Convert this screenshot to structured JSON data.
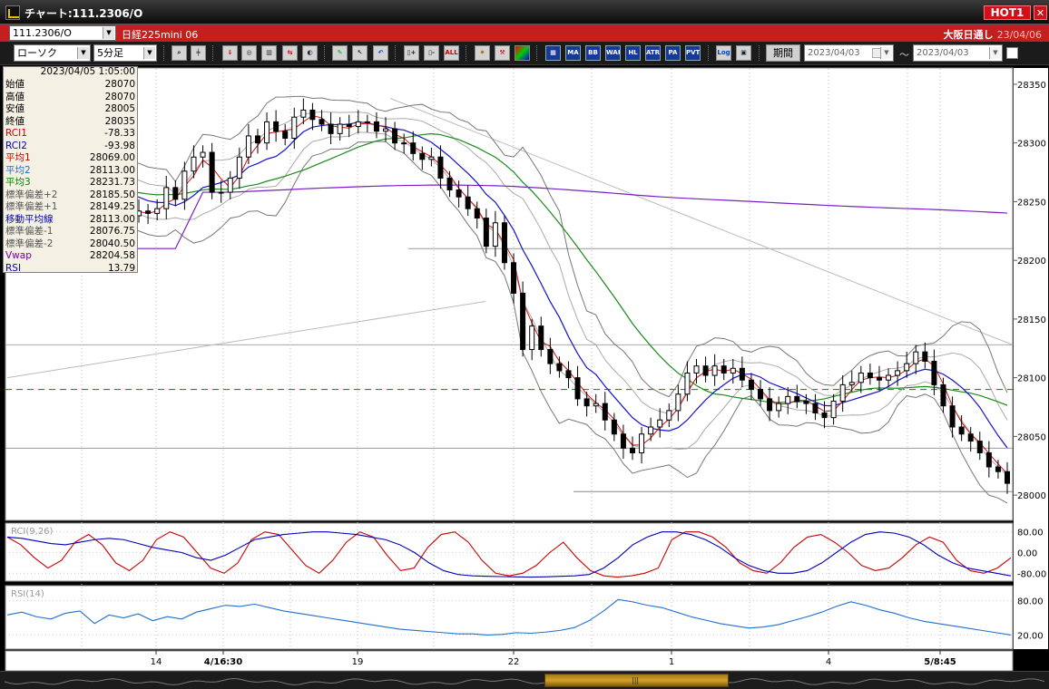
{
  "window": {
    "title": "チャート:111.2306/O",
    "hot_label": "HOT1",
    "close_glyph": "✕"
  },
  "symbolbar": {
    "symbol": "111.2306/O",
    "instrument": "日経225mini 06",
    "session": "大阪日通し",
    "session_date": "23/04/06"
  },
  "toolbar": {
    "chart_type": "ローソク",
    "interval": "5分足",
    "button_labels": [
      "MA",
      "BB",
      "WAE",
      "HL",
      "ATR",
      "PA",
      "PVT",
      "Log"
    ],
    "all_label": "ALL",
    "period_label": "期間",
    "date_from": "2023/04/03",
    "date_to": "2023/04/03",
    "range_sep": "〜"
  },
  "info": {
    "timestamp": "2023/04/05 1:05:00",
    "rows": [
      {
        "label": "始値",
        "value": "28070",
        "color": "#000000"
      },
      {
        "label": "高値",
        "value": "28070",
        "color": "#000000"
      },
      {
        "label": "安値",
        "value": "28005",
        "color": "#000000"
      },
      {
        "label": "終値",
        "value": "28035",
        "color": "#000000"
      },
      {
        "label": "RCI1",
        "value": "-78.33",
        "color": "#cc0000"
      },
      {
        "label": "RCI2",
        "value": "-93.98",
        "color": "#0000bb"
      },
      {
        "label": "平均1",
        "value": "28069.00",
        "color": "#cc0000"
      },
      {
        "label": "平均2",
        "value": "28113.00",
        "color": "#1f6fd0"
      },
      {
        "label": "平均3",
        "value": "28231.73",
        "color": "#008000"
      },
      {
        "label": "標準偏差+2",
        "value": "28185.50",
        "color": "#555555"
      },
      {
        "label": "標準偏差+1",
        "value": "28149.25",
        "color": "#555555"
      },
      {
        "label": "移動平均線",
        "value": "28113.00",
        "color": "#0000bb"
      },
      {
        "label": "標準偏差-1",
        "value": "28076.75",
        "color": "#555555"
      },
      {
        "label": "標準偏差-2",
        "value": "28040.50",
        "color": "#555555"
      },
      {
        "label": "Vwap",
        "value": "28204.58",
        "color": "#7700aa"
      },
      {
        "label": "RSI",
        "value": "13.79",
        "color": "#0000bb"
      }
    ]
  },
  "chart_data": [
    {
      "type": "candlestick",
      "ylim": [
        27980,
        28360
      ],
      "y_ticks": [
        28350,
        28300,
        28250,
        28200,
        28150,
        28100,
        28050,
        28000
      ],
      "x_tick_labels": [
        "14",
        "4/16:30",
        "19",
        "22",
        "1",
        "4",
        "5/8:45"
      ],
      "close_path": [
        28240,
        28262,
        28274,
        28258,
        28268,
        28270,
        28262,
        28265,
        28255,
        28264,
        28272,
        28250,
        28245,
        28238,
        28242,
        28240,
        28244,
        28262,
        28252,
        28276,
        28288,
        28292,
        28258,
        28258,
        28270,
        28288,
        28306,
        28300,
        28318,
        28310,
        28304,
        28322,
        28328,
        28320,
        28316,
        28308,
        28316,
        28314,
        28318,
        28318,
        28310,
        28312,
        28300,
        28300,
        28291,
        28286,
        28288,
        28270,
        28260,
        28254,
        28244,
        28236,
        28212,
        28232,
        28198,
        28172,
        28124,
        28144,
        28124,
        28112,
        28106,
        28100,
        28082,
        28076,
        28078,
        28064,
        28052,
        28040,
        28036,
        28052,
        28058,
        28064,
        28072,
        28086,
        28104,
        28110,
        28102,
        28110,
        28104,
        28108,
        28098,
        28090,
        28082,
        28072,
        28078,
        28084,
        28080,
        28078,
        28070,
        28066,
        28080,
        28094,
        28096,
        28104,
        28100,
        28098,
        28102,
        28106,
        28112,
        28122,
        28114,
        28094,
        28076,
        28058,
        28052,
        28046,
        28036,
        28024,
        28020,
        28010
      ],
      "reference_lines": {
        "dashed_green": 28090,
        "high_gray": 28210,
        "mid_gray": 28128,
        "low_gray": 28040
      }
    },
    {
      "type": "line",
      "title": "RCI(9,26)",
      "ylim": [
        -100,
        100
      ],
      "y_ticks": [
        80,
        0,
        -80
      ],
      "y_tick_labels": [
        "80.00",
        "0.00",
        "-80.00"
      ],
      "series": [
        {
          "name": "RCI1",
          "color": "#cc0000",
          "values": [
            60,
            30,
            -20,
            -60,
            -30,
            40,
            70,
            30,
            -40,
            -70,
            -30,
            50,
            80,
            60,
            0,
            -60,
            -80,
            -40,
            50,
            80,
            70,
            10,
            -50,
            -80,
            -30,
            40,
            80,
            60,
            -10,
            -70,
            -60,
            20,
            70,
            80,
            40,
            -30,
            -80,
            -90,
            -80,
            -50,
            0,
            40,
            -20,
            -70,
            -90,
            -95,
            -90,
            -80,
            -60,
            50,
            80,
            80,
            60,
            20,
            -40,
            -70,
            -80,
            -40,
            20,
            60,
            70,
            40,
            0,
            -50,
            -70,
            -60,
            -20,
            30,
            60,
            40,
            -30,
            -70,
            -80,
            -60,
            -20
          ]
        },
        {
          "name": "RCI2",
          "color": "#0000bb",
          "values": [
            60,
            55,
            45,
            35,
            30,
            40,
            50,
            55,
            50,
            35,
            20,
            10,
            0,
            -20,
            -30,
            -10,
            20,
            50,
            60,
            70,
            75,
            80,
            80,
            75,
            70,
            60,
            50,
            30,
            0,
            -40,
            -70,
            -85,
            -90,
            -92,
            -93,
            -94,
            -95,
            -94,
            -92,
            -90,
            -85,
            -60,
            -20,
            30,
            60,
            80,
            80,
            70,
            50,
            20,
            -20,
            -50,
            -70,
            -80,
            -80,
            -70,
            -40,
            0,
            40,
            70,
            80,
            75,
            60,
            30,
            -10,
            -40,
            -60,
            -70,
            -80,
            -90
          ]
        }
      ]
    },
    {
      "type": "line",
      "title": "RSI(14)",
      "ylim": [
        0,
        100
      ],
      "y_ticks": [
        80,
        20
      ],
      "y_tick_labels": [
        "80.00",
        "20.00"
      ],
      "series": [
        {
          "name": "RSI",
          "color": "#1f6fd0",
          "values": [
            55,
            60,
            52,
            48,
            58,
            62,
            40,
            55,
            50,
            57,
            45,
            52,
            48,
            60,
            66,
            72,
            70,
            74,
            68,
            62,
            58,
            54,
            50,
            46,
            42,
            38,
            34,
            30,
            28,
            26,
            24,
            22,
            22,
            20,
            21,
            24,
            23,
            25,
            28,
            33,
            45,
            62,
            82,
            78,
            72,
            68,
            60,
            52,
            46,
            40,
            36,
            32,
            34,
            38,
            45,
            52,
            60,
            70,
            78,
            72,
            64,
            58,
            50,
            44,
            40,
            36,
            32,
            28,
            24,
            20
          ]
        }
      ]
    }
  ]
}
